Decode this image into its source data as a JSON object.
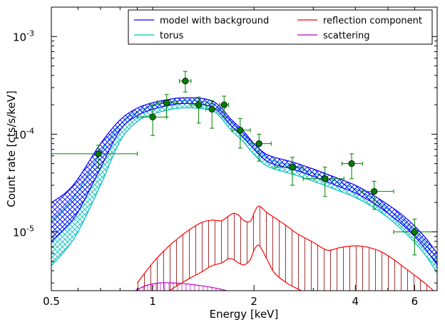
{
  "chart_data": {
    "type": "line",
    "xlabel": "Energy [keV]",
    "ylabel": "Count rate [cts/s/keV]",
    "x_scale": "log",
    "y_scale": "log",
    "xlim": [
      0.5,
      7.0
    ],
    "ylim": [
      2.5e-06,
      0.002
    ],
    "grid": false,
    "legend_position": "top-right",
    "x_ticks": [
      {
        "value": 0.5,
        "label": "0.5"
      },
      {
        "value": 1,
        "label": "1"
      },
      {
        "value": 2,
        "label": "2"
      },
      {
        "value": 4,
        "label": "4"
      },
      {
        "value": 6,
        "label": "6"
      }
    ],
    "y_ticks": [
      {
        "value": 1e-05,
        "base": "10",
        "exp": "-5"
      },
      {
        "value": 0.0001,
        "base": "10",
        "exp": "-4"
      },
      {
        "value": 0.001,
        "base": "10",
        "exp": "-3"
      }
    ],
    "legend": [
      {
        "label": "model with background",
        "color": "#0000ff"
      },
      {
        "label": "reflection component",
        "color": "#ff0000"
      },
      {
        "label": "torus",
        "color": "#00bfbf"
      },
      {
        "label": "scattering",
        "color": "#bf00bf"
      }
    ],
    "series": [
      {
        "name": "model with background",
        "color": "#0000ff",
        "x": [
          0.5,
          0.55,
          0.6,
          0.7,
          0.8,
          0.9,
          1.0,
          1.1,
          1.2,
          1.35,
          1.5,
          1.6,
          1.7,
          1.85,
          2.0,
          2.15,
          2.3,
          2.6,
          3.0,
          3.5,
          4.0,
          4.5,
          5.0,
          5.5,
          6.0,
          6.5,
          7.0
        ],
        "upper": [
          2e-05,
          2.5e-05,
          3.5e-05,
          8e-05,
          0.00014,
          0.000185,
          0.00021,
          0.000225,
          0.000235,
          0.000235,
          0.00022,
          0.000185,
          0.000145,
          0.00011,
          8e-05,
          6.4e-05,
          5.8e-05,
          5.2e-05,
          4.4e-05,
          3.6e-05,
          3e-05,
          2.4e-05,
          1.9e-05,
          1.5e-05,
          1.15e-05,
          8.5e-06,
          6e-06
        ],
        "lower": [
          8e-06,
          1.1e-05,
          1.6e-05,
          4.5e-05,
          0.00011,
          0.000155,
          0.00018,
          0.000195,
          0.000205,
          0.000205,
          0.00019,
          0.00016,
          0.000125,
          9.5e-05,
          7e-05,
          5.5e-05,
          4.9e-05,
          4.4e-05,
          3.7e-05,
          3e-05,
          2.5e-05,
          2e-05,
          1.55e-05,
          1.2e-05,
          9e-06,
          6.5e-06,
          4.6e-06
        ]
      },
      {
        "name": "torus",
        "color": "#00bfbf",
        "x": [
          0.5,
          0.55,
          0.6,
          0.7,
          0.8,
          0.9,
          1.0,
          1.1,
          1.2,
          1.35,
          1.5,
          1.6,
          1.7,
          1.85,
          2.0,
          2.15,
          2.3,
          2.6,
          3.0,
          3.5,
          4.0,
          4.5,
          5.0,
          5.5,
          6.0,
          6.5,
          7.0
        ],
        "upper": [
          1.3e-05,
          1.8e-05,
          2.6e-05,
          6.5e-05,
          0.000125,
          0.00017,
          0.000195,
          0.00021,
          0.00022,
          0.00022,
          0.000205,
          0.000175,
          0.000135,
          0.000102,
          7.4e-05,
          5.9e-05,
          5.3e-05,
          4.75e-05,
          4e-05,
          3.3e-05,
          2.75e-05,
          2.2e-05,
          1.7e-05,
          1.35e-05,
          1e-05,
          7.5e-06,
          5.2e-06
        ],
        "lower": [
          4.5e-06,
          6.5e-06,
          1e-05,
          3e-05,
          8.5e-05,
          0.000135,
          0.00016,
          0.000175,
          0.000185,
          0.000185,
          0.000175,
          0.000145,
          0.000112,
          8.5e-05,
          6.2e-05,
          4.9e-05,
          4.4e-05,
          3.9e-05,
          3.3e-05,
          2.7e-05,
          2.25e-05,
          1.8e-05,
          1.4e-05,
          1.05e-05,
          7.8e-06,
          5.6e-06,
          3.8e-06
        ]
      },
      {
        "name": "reflection component",
        "color": "#ff0000",
        "x": [
          0.9,
          1.0,
          1.1,
          1.2,
          1.3,
          1.4,
          1.5,
          1.6,
          1.68,
          1.74,
          1.8,
          1.87,
          1.95,
          2.0,
          2.05,
          2.1,
          2.2,
          2.3,
          2.5,
          2.7,
          3.0,
          3.3,
          3.6,
          4.0,
          4.4,
          4.8,
          5.2,
          5.6,
          6.0,
          6.5,
          7.0
        ],
        "upper": [
          3e-06,
          4.8e-06,
          6.8e-06,
          8.8e-06,
          1.08e-05,
          1.25e-05,
          1.32e-05,
          1.3e-05,
          1.45e-05,
          1.55e-05,
          1.48e-05,
          1.3e-05,
          1.28e-05,
          1.55e-05,
          1.82e-05,
          1.78e-05,
          1.55e-05,
          1.4e-05,
          1.15e-05,
          9.5e-06,
          7.8e-06,
          6.5e-06,
          6.9e-06,
          7.2e-06,
          6.9e-06,
          6.2e-06,
          5.2e-06,
          4.3e-06,
          3.6e-06,
          2.9e-06,
          2.3e-06
        ],
        "lower": [
          1.7e-06,
          2e-06,
          2.4e-06,
          2.9e-06,
          3.4e-06,
          3.9e-06,
          4.5e-06,
          4.8e-06,
          5.3e-06,
          5.2e-06,
          4.8e-06,
          4.6e-06,
          5.2e-06,
          6.5e-06,
          7.3e-06,
          6.8e-06,
          5e-06,
          3.8e-06,
          3e-06,
          2.6e-06,
          2.2e-06,
          1.9e-06,
          1.7e-06,
          1.6e-06,
          1.5e-06,
          1.4e-06,
          1.3e-06,
          1.2e-06,
          1.1e-06,
          1e-06,
          1e-06
        ]
      },
      {
        "name": "scattering",
        "color": "#bf00bf",
        "x": [
          0.85,
          0.95,
          1.05,
          1.15,
          1.3,
          1.5,
          1.7,
          1.9,
          2.1
        ],
        "upper": [
          2.3e-06,
          2.8e-06,
          3e-06,
          3e-06,
          2.9e-06,
          2.7e-06,
          2.45e-06,
          2.2e-06,
          2e-06
        ],
        "lower": [
          1.9e-06,
          2.2e-06,
          2.4e-06,
          2.4e-06,
          2.3e-06,
          2.2e-06,
          2e-06,
          1.8e-06,
          1.6e-06
        ]
      }
    ],
    "data_points": [
      {
        "x": 0.69,
        "y": 6.3e-05,
        "xerr": [
          0.49,
          0.9
        ],
        "yerr": [
          4.5e-05,
          7.7e-05
        ]
      },
      {
        "x": 1.0,
        "y": 0.00015,
        "xerr": [
          0.9,
          1.1
        ],
        "yerr": [
          9.7e-05,
          0.0002
        ]
      },
      {
        "x": 1.1,
        "y": 0.00021,
        "xerr": [
          1.03,
          1.18
        ],
        "yerr": [
          0.00015,
          0.000255
        ]
      },
      {
        "x": 1.25,
        "y": 0.00035,
        "xerr": [
          1.2,
          1.3
        ],
        "yerr": [
          0.00027,
          0.00044
        ]
      },
      {
        "x": 1.37,
        "y": 0.0002,
        "xerr": [
          1.3,
          1.44
        ],
        "yerr": [
          0.00013,
          0.00024
        ]
      },
      {
        "x": 1.5,
        "y": 0.00018,
        "xerr": [
          1.44,
          1.58
        ],
        "yerr": [
          0.000115,
          0.00022
        ]
      },
      {
        "x": 1.63,
        "y": 0.0002,
        "xerr": [
          1.58,
          1.68
        ],
        "yerr": [
          0.00015,
          0.000245
        ]
      },
      {
        "x": 1.82,
        "y": 0.00011,
        "xerr": [
          1.72,
          1.95
        ],
        "yerr": [
          7.2e-05,
          0.000145
        ]
      },
      {
        "x": 2.07,
        "y": 8e-05,
        "xerr": [
          1.98,
          2.25
        ],
        "yerr": [
          5.3e-05,
          0.0001
        ]
      },
      {
        "x": 2.6,
        "y": 4.6e-05,
        "xerr": [
          2.3,
          2.8
        ],
        "yerr": [
          3e-05,
          5.8e-05
        ]
      },
      {
        "x": 3.25,
        "y": 3.5e-05,
        "xerr": [
          2.8,
          3.7
        ],
        "yerr": [
          2.3e-05,
          4.6e-05
        ]
      },
      {
        "x": 3.9,
        "y": 5e-05,
        "xerr": [
          3.65,
          4.2
        ],
        "yerr": [
          3.5e-05,
          6.3e-05
        ]
      },
      {
        "x": 4.55,
        "y": 2.6e-05,
        "xerr": [
          4.2,
          5.2
        ],
        "yerr": [
          1.7e-05,
          3.3e-05
        ]
      },
      {
        "x": 6.0,
        "y": 1e-05,
        "xerr": [
          5.2,
          7.0
        ],
        "yerr": [
          5.8e-06,
          1.35e-05
        ]
      }
    ],
    "data_color": "#008000"
  }
}
